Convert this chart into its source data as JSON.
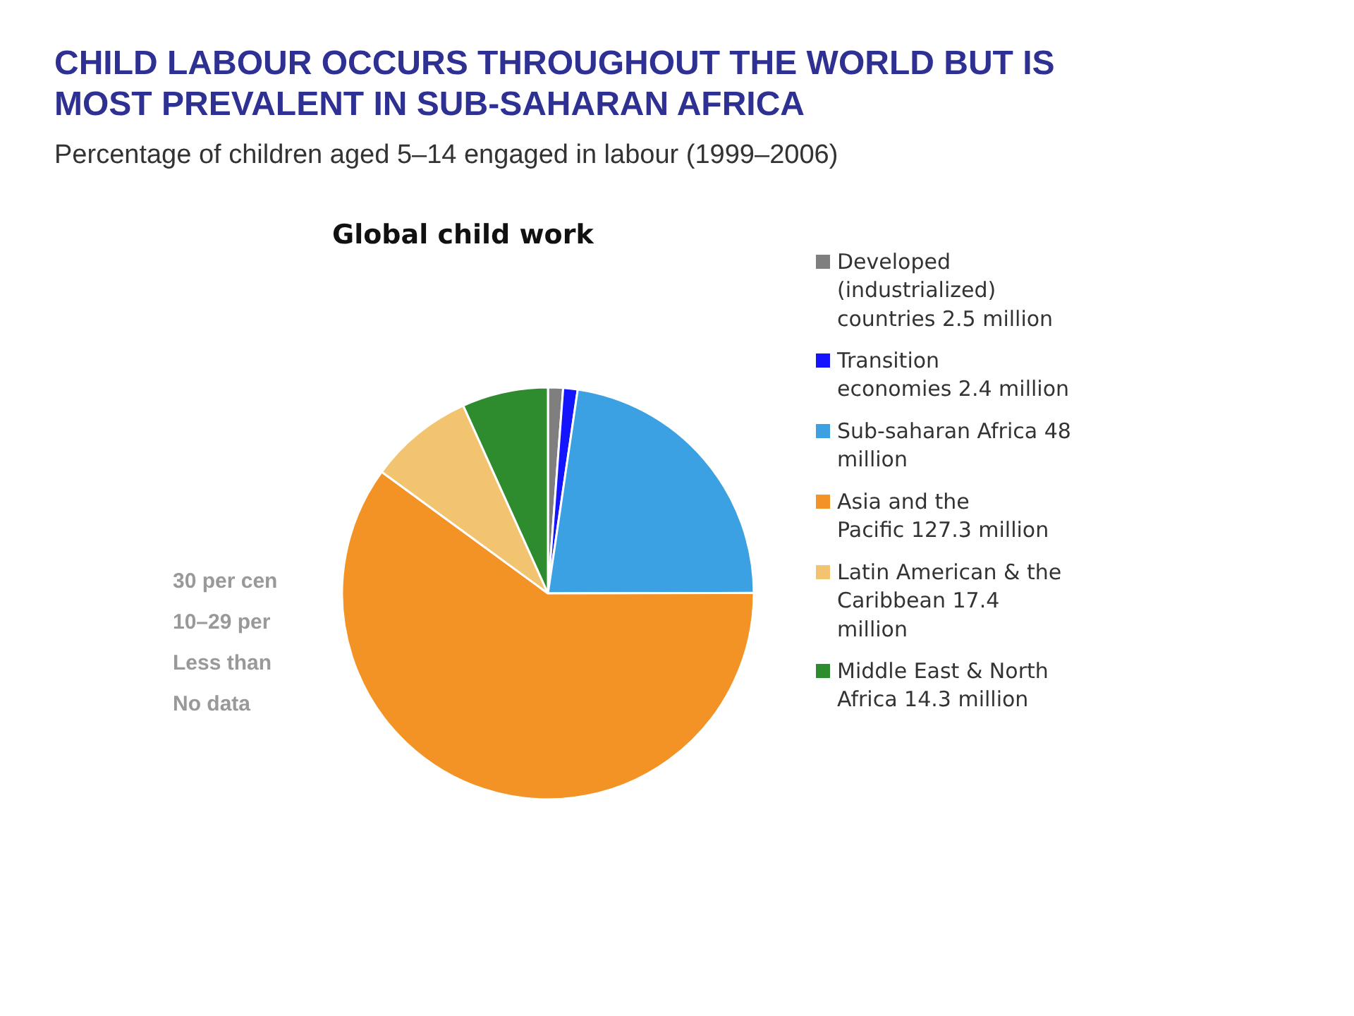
{
  "chart_data": {
    "type": "pie",
    "title": "CHILD LABOUR OCCURS THROUGHOUT THE WORLD BUT IS MOST PREVALENT IN SUB-SAHARAN AFRICA",
    "subtitle": "Percentage of children aged 5–14 engaged in labour (1999–2006)",
    "categories": [
      "Developed (industrialized) countries",
      "Transition economies",
      "Sub-saharan Africa",
      "Asia and the Pacific",
      "Latin American & the Caribbean",
      "Middle East & North Africa"
    ],
    "values": [
      2.5,
      2.4,
      48,
      127.3,
      17.4,
      14.3
    ],
    "value_labels": [
      "2.5 million",
      "2.4 million",
      "48 million",
      "127.3 million",
      "17.4 million",
      "14.3 million"
    ],
    "colors": [
      "#7f7f7f",
      "#1414ff",
      "#3ba1e2",
      "#f39325",
      "#f2c46f",
      "#2e8b2e"
    ],
    "legend": "right",
    "annotations": [
      "Global child work",
      "30 per cen",
      "10–29 per",
      "Less than",
      "No data"
    ]
  }
}
